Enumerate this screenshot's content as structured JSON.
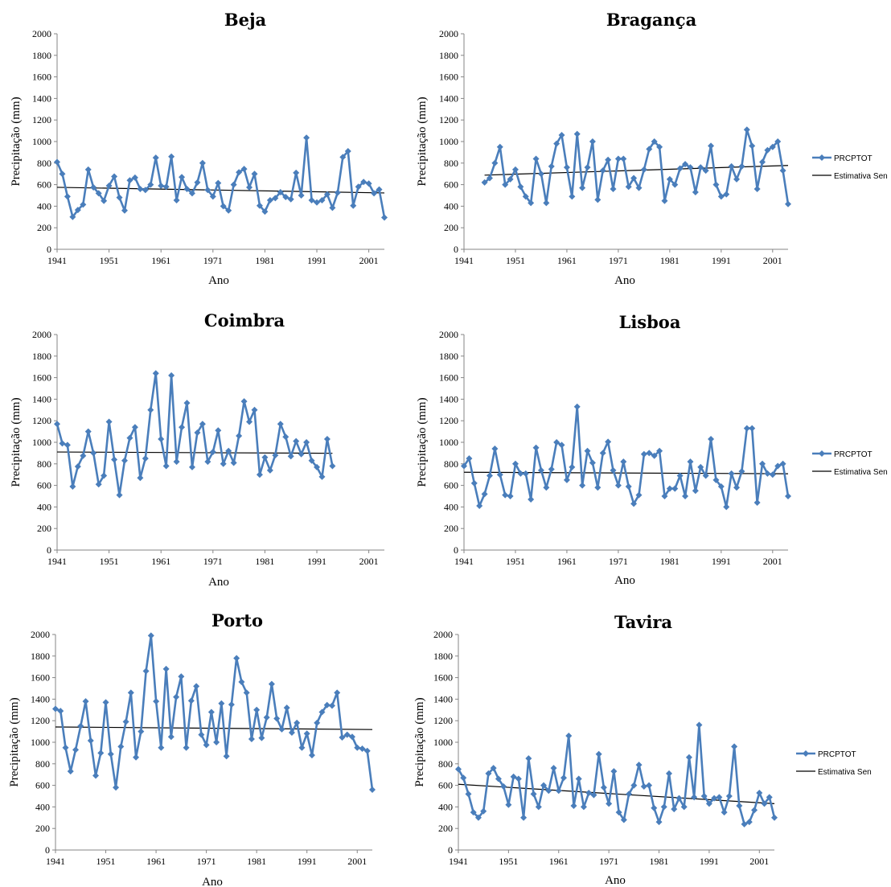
{
  "colors": {
    "series": "#4A7EBB",
    "trend": "#000000",
    "axis": "#868686"
  },
  "chart_data": [
    {
      "type": "line",
      "title": "Beja",
      "xlabel": "Ano",
      "ylabel": "Precipitação (mm)",
      "x_start": 1941,
      "x_ticks": [
        "1941",
        "1951",
        "1961",
        "1971",
        "1981",
        "1991",
        "2001"
      ],
      "ylim": [
        0,
        2000
      ],
      "y_ticks": [
        "0",
        "200",
        "400",
        "600",
        "800",
        "1000",
        "1200",
        "1400",
        "1600",
        "1800",
        "2000"
      ],
      "legend": [],
      "series": [
        {
          "name": "PRCPTOT",
          "values": [
            810,
            700,
            490,
            300,
            365,
            415,
            740,
            575,
            520,
            450,
            590,
            675,
            480,
            360,
            640,
            665,
            560,
            550,
            600,
            850,
            590,
            580,
            860,
            455,
            670,
            560,
            520,
            620,
            800,
            550,
            490,
            615,
            400,
            360,
            600,
            715,
            745,
            575,
            700,
            405,
            350,
            455,
            475,
            530,
            485,
            465,
            710,
            500,
            1035,
            455,
            435,
            455,
            510,
            385,
            525,
            855,
            910,
            405,
            580,
            625,
            610,
            520,
            555,
            295
          ]
        },
        {
          "name": "Estimativa Sen",
          "values": [
            575,
            523
          ]
        }
      ]
    },
    {
      "type": "line",
      "title": "Bragança",
      "xlabel": "Ano",
      "ylabel": "Precipitação (mm)",
      "x_start": 1941,
      "x_ticks": [
        "1941",
        "1951",
        "1961",
        "1971",
        "1981",
        "1991",
        "2001"
      ],
      "ylim": [
        0,
        2000
      ],
      "y_ticks": [
        "0",
        "200",
        "400",
        "600",
        "800",
        "1000",
        "1200",
        "1400",
        "1600",
        "1800",
        "2000"
      ],
      "legend": [
        "PRCPTOT",
        "Estimativa Sen"
      ],
      "legend_position": "right",
      "series": [
        {
          "name": "PRCPTOT",
          "x_start": 1945,
          "values": [
            620,
            660,
            800,
            950,
            600,
            650,
            740,
            580,
            490,
            430,
            840,
            700,
            430,
            770,
            980,
            1060,
            760,
            490,
            1070,
            570,
            760,
            1000,
            460,
            730,
            830,
            560,
            840,
            840,
            580,
            660,
            570,
            740,
            930,
            1000,
            950,
            450,
            650,
            600,
            750,
            790,
            760,
            530,
            760,
            730,
            960,
            600,
            490,
            510,
            770,
            650,
            770,
            1110,
            960,
            560,
            810,
            920,
            950,
            1000,
            730,
            420
          ]
        },
        {
          "name": "Estimativa Sen",
          "x_start": 1945,
          "values": [
            688,
            778
          ]
        }
      ]
    },
    {
      "type": "line",
      "title": "Coimbra",
      "xlabel": "Ano",
      "ylabel": "Precipitação (mm)",
      "x_start": 1941,
      "x_ticks": [
        "1941",
        "1951",
        "1961",
        "1971",
        "1981",
        "1991",
        "2001"
      ],
      "ylim": [
        0,
        2000
      ],
      "y_ticks": [
        "0",
        "200",
        "400",
        "600",
        "800",
        "1000",
        "1200",
        "1400",
        "1600",
        "1800",
        "2000"
      ],
      "legend": [],
      "series": [
        {
          "name": "PRCPTOT",
          "values": [
            1170,
            990,
            975,
            590,
            775,
            875,
            1100,
            900,
            610,
            690,
            1190,
            840,
            510,
            830,
            1040,
            1140,
            670,
            850,
            1300,
            1640,
            1030,
            780,
            1620,
            820,
            1140,
            1365,
            770,
            1090,
            1170,
            820,
            910,
            1110,
            800,
            920,
            810,
            1060,
            1380,
            1190,
            1300,
            700,
            860,
            740,
            880,
            1170,
            1050,
            870,
            1010,
            890,
            1000,
            830,
            770,
            680,
            1030,
            780
          ]
        },
        {
          "name": "Estimativa Sen",
          "values": [
            910,
            898
          ]
        }
      ]
    },
    {
      "type": "line",
      "title": "Lisboa",
      "xlabel": "Ano",
      "ylabel": "Precipitação (mm)",
      "x_start": 1941,
      "x_ticks": [
        "1941",
        "1951",
        "1961",
        "1971",
        "1981",
        "1991",
        "2001"
      ],
      "ylim": [
        0,
        2000
      ],
      "y_ticks": [
        "0",
        "200",
        "400",
        "600",
        "800",
        "1000",
        "1200",
        "1400",
        "1600",
        "1800",
        "2000"
      ],
      "legend": [
        "PRCPTOT",
        "Estimativa Sen"
      ],
      "legend_position": "right",
      "series": [
        {
          "name": "PRCPTOT",
          "values": [
            780,
            850,
            620,
            410,
            520,
            690,
            940,
            700,
            510,
            500,
            800,
            710,
            710,
            470,
            950,
            740,
            580,
            750,
            1000,
            975,
            650,
            770,
            1330,
            600,
            920,
            810,
            580,
            900,
            1005,
            740,
            600,
            820,
            590,
            430,
            510,
            890,
            900,
            875,
            920,
            500,
            570,
            570,
            690,
            500,
            820,
            550,
            770,
            690,
            1030,
            650,
            590,
            400,
            710,
            580,
            730,
            1130,
            1130,
            440,
            800,
            710,
            700,
            780,
            800,
            500
          ]
        },
        {
          "name": "Estimativa Sen",
          "values": [
            722,
            708
          ]
        }
      ]
    },
    {
      "type": "line",
      "title": "Porto",
      "xlabel": "Ano",
      "ylabel": "Precipitação (mm)",
      "x_start": 1941,
      "x_ticks": [
        "1941",
        "1951",
        "1961",
        "1971",
        "1981",
        "1991",
        "2001"
      ],
      "ylim": [
        0,
        2000
      ],
      "y_ticks": [
        "0",
        "200",
        "400",
        "600",
        "800",
        "1000",
        "1200",
        "1400",
        "1600",
        "1800",
        "2000"
      ],
      "legend": [],
      "series": [
        {
          "name": "PRCPTOT",
          "values": [
            1310,
            1290,
            950,
            730,
            930,
            1150,
            1380,
            1015,
            690,
            900,
            1370,
            890,
            580,
            960,
            1190,
            1460,
            860,
            1100,
            1660,
            1990,
            1380,
            950,
            1680,
            1050,
            1420,
            1610,
            950,
            1385,
            1520,
            1070,
            975,
            1280,
            1000,
            1360,
            870,
            1350,
            1780,
            1560,
            1460,
            1030,
            1300,
            1040,
            1230,
            1540,
            1220,
            1120,
            1320,
            1090,
            1180,
            950,
            1080,
            880,
            1180,
            1280,
            1345,
            1340,
            1460,
            1045,
            1070,
            1050,
            950,
            940,
            920,
            560
          ]
        },
        {
          "name": "Estimativa Sen",
          "values": [
            1142,
            1118
          ]
        }
      ]
    },
    {
      "type": "line",
      "title": "Tavira",
      "xlabel": "Ano",
      "ylabel": "Precipitação (mm)",
      "x_start": 1941,
      "x_ticks": [
        "1941",
        "1951",
        "1961",
        "1971",
        "1981",
        "1991",
        "2001"
      ],
      "ylim": [
        0,
        2000
      ],
      "y_ticks": [
        "0",
        "200",
        "400",
        "600",
        "800",
        "1000",
        "1200",
        "1400",
        "1600",
        "1800",
        "2000"
      ],
      "legend": [
        "PRCPTOT",
        "Estimativa Sen"
      ],
      "legend_position": "right",
      "series": [
        {
          "name": "PRCPTOT",
          "values": [
            750,
            670,
            520,
            350,
            300,
            360,
            710,
            760,
            660,
            590,
            420,
            680,
            660,
            300,
            850,
            520,
            400,
            600,
            550,
            760,
            550,
            670,
            1060,
            410,
            660,
            400,
            530,
            510,
            890,
            580,
            430,
            730,
            350,
            280,
            520,
            600,
            790,
            590,
            600,
            390,
            260,
            400,
            710,
            380,
            480,
            400,
            860,
            490,
            1160,
            500,
            430,
            480,
            490,
            350,
            500,
            960,
            410,
            240,
            260,
            370,
            530,
            430,
            490,
            300
          ]
        },
        {
          "name": "Estimativa Sen",
          "values": [
            610,
            430
          ]
        }
      ]
    }
  ]
}
